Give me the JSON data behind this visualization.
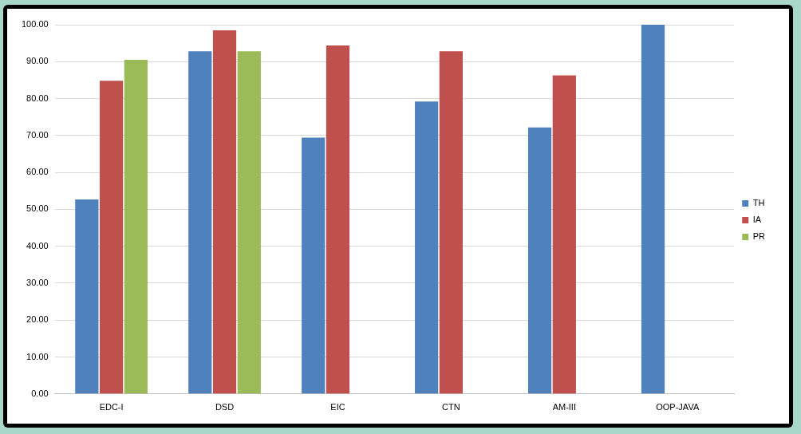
{
  "chart_data": {
    "type": "bar",
    "categories": [
      "EDC-I",
      "DSD",
      "EIC",
      "CTN",
      "AM-III",
      "OOP-JAVA"
    ],
    "series": [
      {
        "name": "TH",
        "color": "#4f81bd",
        "values": [
          52.7,
          92.8,
          69.4,
          79.2,
          72.2,
          100
        ]
      },
      {
        "name": "IA",
        "color": "#c0504d",
        "values": [
          84.8,
          98.5,
          94.4,
          92.8,
          86.3,
          null
        ]
      },
      {
        "name": "PR",
        "color": "#9bbb59",
        "values": [
          90.5,
          92.8,
          null,
          null,
          null,
          null
        ]
      }
    ],
    "ylim": [
      0,
      100
    ],
    "yticks": [
      {
        "value": 0,
        "label": "0.00"
      },
      {
        "value": 10,
        "label": "10.00"
      },
      {
        "value": 20,
        "label": "20.00"
      },
      {
        "value": 30,
        "label": "30.00"
      },
      {
        "value": 40,
        "label": "40.00"
      },
      {
        "value": 50,
        "label": "50.00"
      },
      {
        "value": 60,
        "label": "60.00"
      },
      {
        "value": 70,
        "label": "70.00"
      },
      {
        "value": 80,
        "label": "80.00"
      },
      {
        "value": 90,
        "label": "90.00"
      },
      {
        "value": 100,
        "label": "100.00"
      }
    ],
    "grid": "y",
    "legend": "right"
  }
}
